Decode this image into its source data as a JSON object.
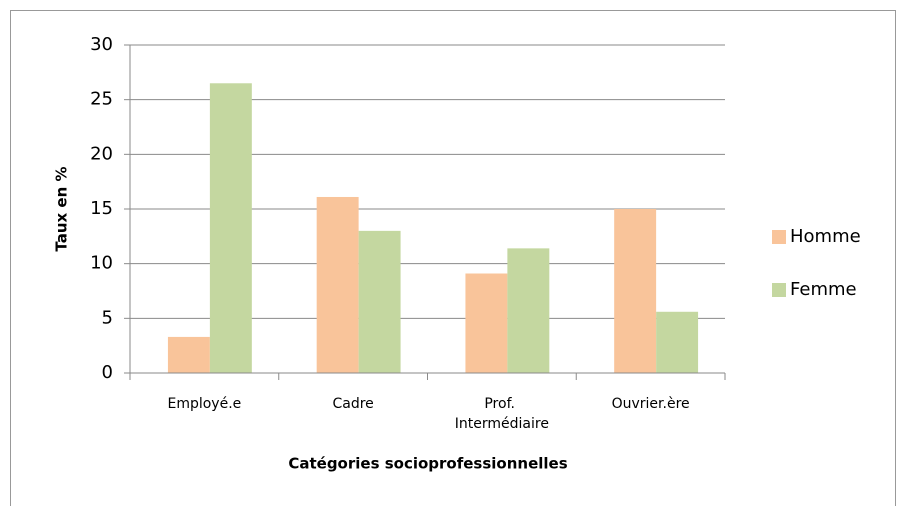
{
  "chart_data": {
    "type": "bar",
    "categories": [
      "Employé.e",
      "Cadre",
      "Prof. Intermédiaire",
      "Ouvrier.ère"
    ],
    "series": [
      {
        "name": "Homme",
        "color": "#f9c49a",
        "values": [
          3.3,
          16.1,
          9.1,
          15.0
        ]
      },
      {
        "name": "Femme",
        "color": "#c4d7a0",
        "values": [
          26.5,
          13.0,
          11.4,
          5.6
        ]
      }
    ],
    "ylabel": "Taux en %",
    "xlabel": "Catégories socioprofessionnelles",
    "ylim": [
      0,
      30
    ],
    "yticks": [
      0,
      5,
      10,
      15,
      20,
      25,
      30
    ],
    "grid": true,
    "legend": "right"
  }
}
